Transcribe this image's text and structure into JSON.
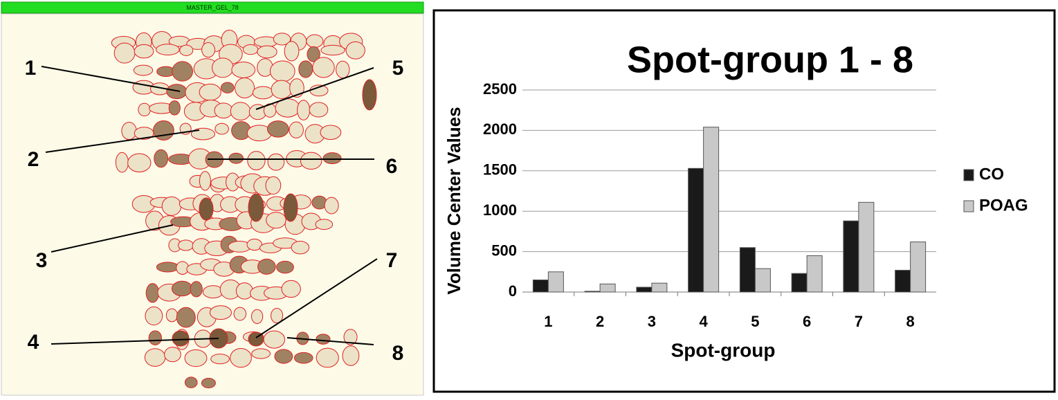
{
  "gel": {
    "title": "MASTER_GEL_78",
    "labels": [
      "1",
      "2",
      "3",
      "4",
      "5",
      "6",
      "7",
      "8"
    ]
  },
  "chart_data": {
    "type": "bar",
    "title": "Spot-group 1 - 8",
    "x_label": "Spot-group",
    "y_label": "Volume Center Values",
    "categories": [
      "1",
      "2",
      "3",
      "4",
      "5",
      "6",
      "7",
      "8"
    ],
    "series": [
      {
        "name": "CO",
        "color": "#1a1a1a",
        "values": [
          150,
          10,
          60,
          1530,
          550,
          230,
          880,
          270
        ]
      },
      {
        "name": "POAG",
        "color": "#c8c8c8",
        "values": [
          250,
          100,
          110,
          2040,
          290,
          450,
          1110,
          620
        ]
      }
    ],
    "ylim": [
      0,
      2500
    ],
    "yticks": [
      0,
      500,
      1000,
      1500,
      2000,
      2500
    ],
    "grid": true,
    "legend": "right"
  }
}
